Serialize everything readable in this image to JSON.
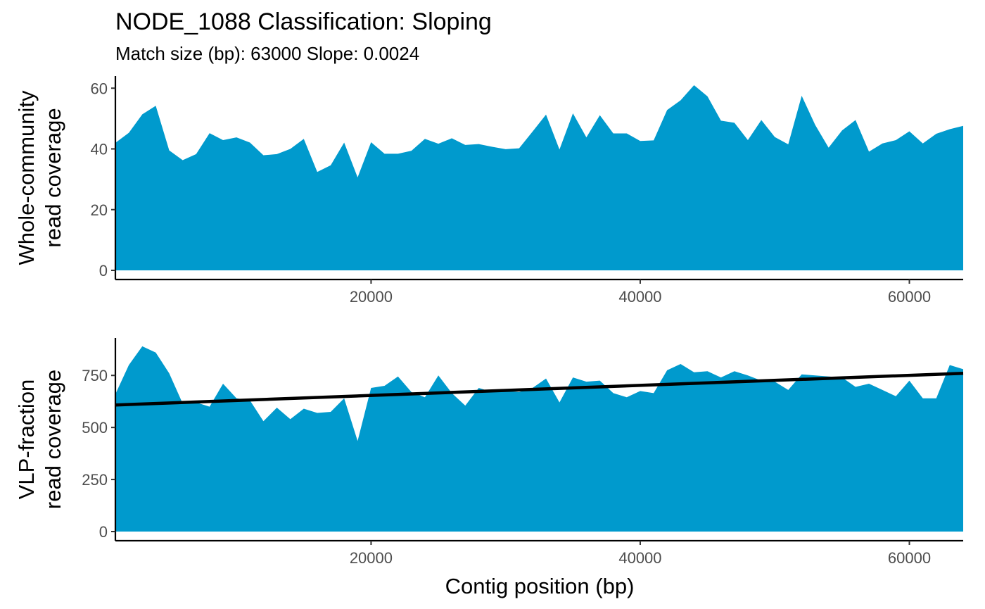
{
  "title": "NODE_1088 Classification: Sloping",
  "subtitle": "Match size (bp): 63000 Slope: 0.0024",
  "xlabel": "Contig position (bp)",
  "colors": {
    "area": "#009ACD",
    "line": "#000000",
    "axis": "#000000",
    "tick_text": "#4d4d4d"
  },
  "chart_data": [
    {
      "type": "area",
      "ylabel_lines": [
        "Whole-community",
        "read coverage"
      ],
      "xlim": [
        1000,
        64000
      ],
      "ylim": [
        0,
        64
      ],
      "xticks": [
        20000,
        40000,
        60000
      ],
      "yticks": [
        0,
        20,
        40,
        60
      ],
      "x": [
        1000,
        2000,
        3000,
        4000,
        5000,
        6000,
        7000,
        8000,
        9000,
        10000,
        11000,
        12000,
        13000,
        14000,
        15000,
        16000,
        17000,
        18000,
        19000,
        20000,
        21000,
        22000,
        23000,
        24000,
        25000,
        26000,
        27000,
        28000,
        29000,
        30000,
        31000,
        32000,
        33000,
        34000,
        35000,
        36000,
        37000,
        38000,
        39000,
        40000,
        41000,
        42000,
        43000,
        44000,
        45000,
        46000,
        47000,
        48000,
        49000,
        50000,
        51000,
        52000,
        53000,
        54000,
        55000,
        56000,
        57000,
        58000,
        59000,
        60000,
        61000,
        62000,
        63000,
        64000
      ],
      "y": [
        42,
        45.3,
        51.4,
        54.2,
        39.5,
        36.3,
        38.3,
        45.2,
        42.9,
        43.8,
        42.1,
        37.9,
        38.3,
        40,
        43.3,
        32.4,
        34.6,
        42.1,
        30.6,
        42.2,
        38.4,
        38.4,
        39.4,
        43.3,
        41.7,
        43.5,
        41.3,
        41.6,
        40.7,
        39.9,
        40.2,
        45.7,
        51.3,
        39.8,
        51.7,
        43.8,
        51.1,
        45.1,
        45.1,
        42.6,
        42.8,
        52.8,
        56,
        61,
        57.3,
        49.3,
        48.6,
        42.9,
        49.5,
        43.9,
        41.5,
        57.5,
        47.9,
        40.4,
        46.1,
        49.5,
        39.1,
        41.8,
        42.9,
        45.8,
        41.8,
        45,
        46.5,
        47.6
      ],
      "grid": false
    },
    {
      "type": "area",
      "ylabel_lines": [
        "VLP-fraction",
        "read coverage"
      ],
      "xlim": [
        1000,
        64000
      ],
      "ylim": [
        0,
        930
      ],
      "xticks": [
        20000,
        40000,
        60000
      ],
      "yticks": [
        0,
        250,
        500,
        750
      ],
      "x": [
        1000,
        2000,
        3000,
        4000,
        5000,
        6000,
        7000,
        8000,
        9000,
        10000,
        11000,
        12000,
        13000,
        14000,
        15000,
        16000,
        17000,
        18000,
        19000,
        20000,
        21000,
        22000,
        23000,
        24000,
        25000,
        26000,
        27000,
        28000,
        29000,
        30000,
        31000,
        32000,
        33000,
        34000,
        35000,
        36000,
        37000,
        38000,
        39000,
        40000,
        41000,
        42000,
        43000,
        44000,
        45000,
        46000,
        47000,
        48000,
        49000,
        50000,
        51000,
        52000,
        53000,
        54000,
        55000,
        56000,
        57000,
        58000,
        59000,
        60000,
        61000,
        62000,
        63000,
        64000
      ],
      "y": [
        660,
        800,
        890,
        860,
        760,
        615,
        620,
        600,
        710,
        640,
        630,
        530,
        595,
        540,
        590,
        570,
        575,
        640,
        435,
        690,
        700,
        745,
        670,
        645,
        750,
        665,
        605,
        690,
        670,
        675,
        670,
        690,
        735,
        620,
        740,
        720,
        725,
        665,
        645,
        675,
        665,
        775,
        805,
        765,
        770,
        740,
        770,
        750,
        725,
        720,
        680,
        755,
        750,
        745,
        740,
        695,
        710,
        680,
        650,
        725,
        640,
        640,
        800,
        780
      ],
      "trend": {
        "x": [
          1000,
          64000
        ],
        "y": [
          608,
          760
        ]
      },
      "grid": false
    }
  ]
}
